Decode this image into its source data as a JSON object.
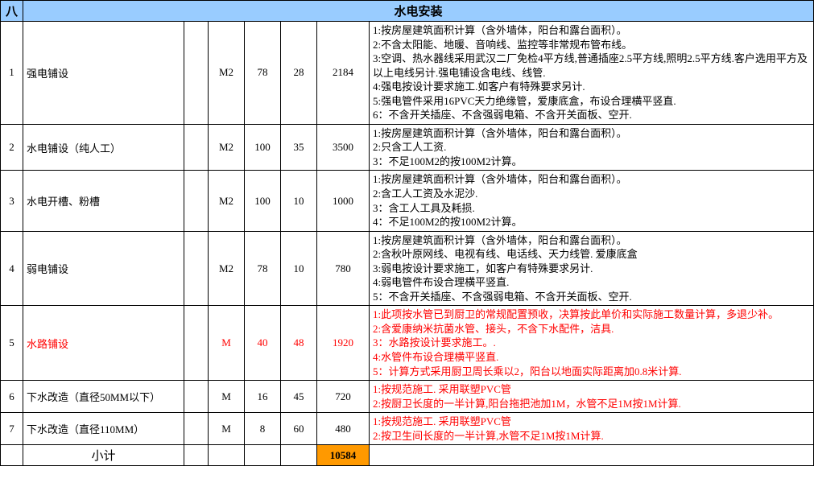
{
  "header": {
    "section_no": "八",
    "title": "水电安装"
  },
  "colors": {
    "header_bg": "#99ccff",
    "subtotal_bg": "#ff9900",
    "highlight_text": "#ff0000",
    "border": "#000000",
    "background": "#ffffff"
  },
  "rows": [
    {
      "idx": "1",
      "name": "强电铺设",
      "unit": "M2",
      "qty": "78",
      "price": "28",
      "total": "2184",
      "desc": [
        "1:按房屋建筑面积计算（含外墙体，阳台和露台面积）。",
        "2:不含太阳能、地暖、音响线、监控等非常规布管布线。",
        "3:空调、热水器线采用武汉二厂免检4平方线,普通插座2.5平方线,照明2.5平方线.客户选用平方及以上电线另计.强电铺设含电线、线管.",
        "4:强电按设计要求施工.如客户有特殊要求另计.",
        "5:强电管件采用16PVC天力绝缘管，爱康底盒，布设合理横平竖直.",
        "6：不含开关插座、不含强弱电箱、不含开关面板、空开."
      ],
      "red": false
    },
    {
      "idx": "2",
      "name": "水电铺设（纯人工）",
      "unit": "M2",
      "qty": "100",
      "price": "35",
      "total": "3500",
      "desc": [
        "1:按房屋建筑面积计算（含外墙体，阳台和露台面积）。",
        "2:只含工人工资.",
        "3：不足100M2的按100M2计算。"
      ],
      "red": false
    },
    {
      "idx": "3",
      "name": "水电开槽、粉槽",
      "unit": "M2",
      "qty": "100",
      "price": "10",
      "total": "1000",
      "desc": [
        "1:按房屋建筑面积计算（含外墙体，阳台和露台面积）。",
        "2:含工人工资及水泥沙.",
        "3：含工人工具及耗损.",
        "4：不足100M2的按100M2计算。"
      ],
      "red": false
    },
    {
      "idx": "4",
      "name": "弱电铺设",
      "unit": "M2",
      "qty": "78",
      "price": "10",
      "total": "780",
      "desc": [
        "1:按房屋建筑面积计算（含外墙体，阳台和露台面积）。",
        "2:含秋叶原网线、电视有线、电话线、天力线管. 爱康底盒",
        "3:弱电按设计要求施工，如客户有特殊要求另计.",
        "4:弱电管件布设合理横平竖直.",
        "5：不含开关插座、不含强弱电箱、不含开关面板、空开."
      ],
      "red": false
    },
    {
      "idx": "5",
      "name": "水路铺设",
      "unit": "M",
      "qty": "40",
      "price": "48",
      "total": "1920",
      "desc": [
        "1:此项按水管已到厨卫的常规配置预收，决算按此单价和实际施工数量计算，多退少补。",
        "2:含爱康纳米抗菌水管、接头，不含下水配件，洁具.",
        "3：水路按设计要求施工。.",
        "4:水管件布设合理横平竖直.",
        "5：计算方式采用厨卫周长乘以2，阳台以地面实际距离加0.8米计算."
      ],
      "red": true
    },
    {
      "idx": "6",
      "name": "下水改造（直径50MM以下）",
      "unit": "M",
      "qty": "16",
      "price": "45",
      "total": "720",
      "desc": [
        "1:按规范施工. 采用联塑PVC管",
        "2:按厨卫长度的一半计算,阳台拖把池加1M，水管不足1M按1M计算."
      ],
      "red": true,
      "desc_only_red": true
    },
    {
      "idx": "7",
      "name": "下水改造（直径110MM）",
      "unit": "M",
      "qty": "8",
      "price": "60",
      "total": "480",
      "desc": [
        "1:按规范施工. 采用联塑PVC管",
        "2:按卫生间长度的一半计算,水管不足1M按1M计算."
      ],
      "red": true,
      "desc_only_red": true
    }
  ],
  "subtotal": {
    "label": "小计",
    "value": "10584"
  }
}
